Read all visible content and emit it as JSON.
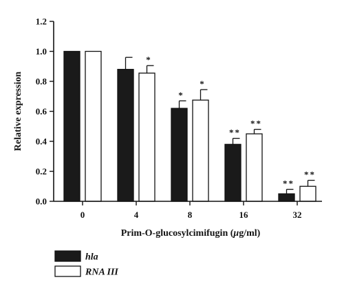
{
  "chart_data": {
    "type": "bar",
    "categories": [
      "0",
      "4",
      "8",
      "16",
      "32"
    ],
    "series": [
      {
        "name": "hla",
        "values": [
          1.0,
          0.88,
          0.62,
          0.38,
          0.05
        ],
        "errors": [
          0.0,
          0.08,
          0.05,
          0.04,
          0.03
        ],
        "significance": [
          "",
          "",
          "*",
          "**",
          "**"
        ],
        "color": "#1a1a1a"
      },
      {
        "name": "RNA III",
        "values": [
          1.0,
          0.855,
          0.675,
          0.45,
          0.1
        ],
        "errors": [
          0.0,
          0.05,
          0.07,
          0.03,
          0.04
        ],
        "significance": [
          "",
          "*",
          "*",
          "**",
          "**"
        ],
        "color": "#ffffff"
      }
    ],
    "xlabel": {
      "pre": "Prim-O-glucosylcimifugin (",
      "mu": "μ",
      "post": "g/ml)"
    },
    "ylabel": "Relative expression",
    "ylim": [
      0,
      1.2
    ],
    "yticks": [
      "0.0",
      "0.2",
      "0.4",
      "0.6",
      "0.8",
      "1.0",
      "1.2"
    ],
    "grid": false,
    "legend_position": "bottom-left"
  }
}
